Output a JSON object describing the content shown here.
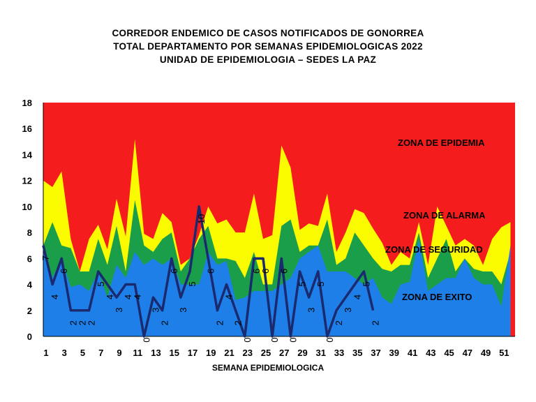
{
  "title": {
    "line1": "CORREDOR ENDEMICO DE CASOS NOTIFICADOS DE GONORREA",
    "line2": "TOTAL DEPARTAMENTO POR SEMANAS EPIDEMIOLOGICAS 2022",
    "line3": "UNIDAD DE EPIDEMIOLOGIA – SEDES LA PAZ"
  },
  "chart_data": {
    "type": "area",
    "xlabel": "SEMANA EPIDEMIOLOGICA",
    "ylabel": "",
    "ylim": [
      0,
      18
    ],
    "yticks": [
      0,
      2,
      4,
      6,
      8,
      10,
      12,
      14,
      16,
      18
    ],
    "xticks": [
      1,
      3,
      5,
      7,
      9,
      11,
      13,
      15,
      17,
      19,
      21,
      23,
      25,
      27,
      29,
      31,
      33,
      35,
      37,
      39,
      41,
      43,
      45,
      47,
      49,
      51
    ],
    "x": [
      1,
      2,
      3,
      4,
      5,
      6,
      7,
      8,
      9,
      10,
      11,
      12,
      13,
      14,
      15,
      16,
      17,
      18,
      19,
      20,
      21,
      22,
      23,
      24,
      25,
      26,
      27,
      28,
      29,
      30,
      31,
      32,
      33,
      34,
      35,
      36,
      37,
      38,
      39,
      40,
      41,
      42,
      43,
      44,
      45,
      46,
      47,
      48,
      49,
      50,
      51,
      52
    ],
    "zones": [
      {
        "name": "ZONA DE EXITO",
        "color": "#1e7fe8",
        "values": [
          7,
          4.5,
          6,
          3.8,
          4,
          3.5,
          5,
          3,
          5.5,
          4.5,
          6.5,
          5.5,
          6,
          5.5,
          6,
          4,
          4,
          4,
          6.5,
          5.5,
          5.8,
          2.8,
          3,
          3.5,
          3.5,
          3.5,
          4,
          4.5,
          6,
          6.5,
          7,
          5,
          5,
          5,
          4.5,
          4,
          4.5,
          3,
          2.5,
          4,
          4.2,
          7.5,
          3.5,
          4,
          4.5,
          4.5,
          6,
          4.5,
          4,
          4,
          2.3,
          7
        ]
      },
      {
        "name": "ZONA DE SEGURIDAD",
        "color": "#1a9e4a",
        "values": [
          7,
          8.8,
          7,
          6.8,
          5,
          5,
          7.5,
          5.5,
          8.5,
          5,
          10.5,
          7,
          6.5,
          7.5,
          8,
          5,
          6,
          7.5,
          8.5,
          6,
          6,
          5.8,
          4.5,
          6.5,
          4,
          4,
          8.5,
          9,
          6.5,
          7,
          7,
          9,
          5.5,
          6,
          8,
          7,
          6,
          5.2,
          5,
          5.5,
          5.5,
          8,
          4.5,
          6,
          7.5,
          5,
          6,
          5.2,
          5,
          5,
          4,
          6.5
        ]
      },
      {
        "name": "ZONA DE ALARMA",
        "color": "#fbfb00",
        "values": [
          12,
          11.5,
          12.7,
          7.5,
          5,
          7.5,
          8.6,
          6.7,
          10.6,
          7.7,
          15.2,
          7.9,
          7.5,
          9.5,
          8.8,
          5.5,
          6,
          7.8,
          10,
          8.7,
          9,
          8,
          8,
          11,
          7.5,
          7.8,
          14.7,
          13,
          8.2,
          8.7,
          8.5,
          11,
          6.5,
          8,
          9.8,
          9.5,
          8.3,
          7.2,
          5.5,
          6.5,
          6,
          8.8,
          5.5,
          10,
          8.5,
          7,
          7.5,
          7,
          5.5,
          7.5,
          8.4,
          8.8
        ]
      },
      {
        "name": "ZONA DE EPIDEMIA",
        "color": "#f41c1c",
        "values": []
      }
    ],
    "series": [
      {
        "name": "",
        "color": "#1a2a6e",
        "x": [
          1,
          2,
          3,
          4,
          5,
          6,
          7,
          8,
          9,
          10,
          11,
          12,
          13,
          14,
          15,
          16,
          17,
          18,
          19,
          20,
          21,
          22,
          23,
          24,
          25,
          26,
          27,
          28,
          29,
          30,
          31,
          32,
          33,
          34,
          35,
          36,
          37
        ],
        "values": [
          7,
          4,
          6,
          2,
          2,
          2,
          5,
          4,
          3,
          4,
          4,
          0,
          3,
          2,
          6,
          3,
          5,
          10,
          6,
          2,
          4,
          2,
          0,
          6,
          6,
          0,
          6,
          0,
          5,
          3,
          5,
          0,
          2,
          3,
          4,
          5,
          2
        ]
      }
    ],
    "zone_labels": [
      "ZONA DE EPIDEMIA",
      "ZONA DE ALARMA",
      "ZONA DE  SEGURIDAD",
      "ZONA DE  EXITO"
    ],
    "grid": false,
    "legend": "none"
  }
}
